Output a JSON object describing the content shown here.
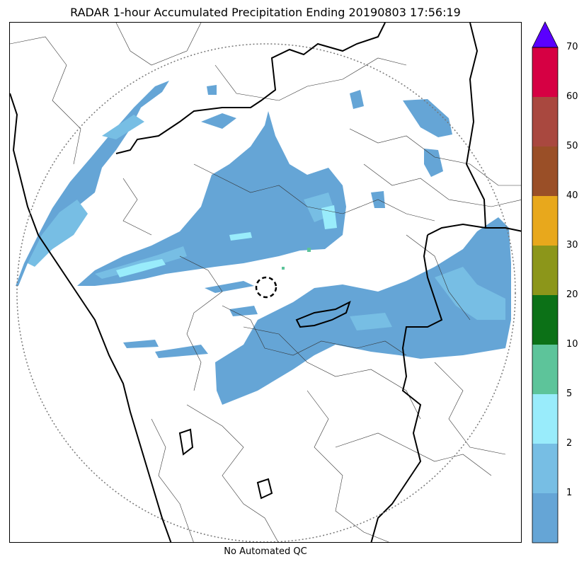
{
  "title": "RADAR 1-hour Accumulated Precipitation Ending 20190803 17:56:19",
  "footer": "No Automated QC",
  "colorbar": {
    "ticks": [
      "1",
      "2",
      "5",
      "10",
      "20",
      "30",
      "40",
      "50",
      "60",
      "70"
    ],
    "levels": [
      {
        "range": "0-1",
        "color": "#65a5d6"
      },
      {
        "range": "1-2",
        "color": "#77bee4"
      },
      {
        "range": "2-5",
        "color": "#99ecfb"
      },
      {
        "range": "5-10",
        "color": "#5dc49a"
      },
      {
        "range": "10-20",
        "color": "#0c7117"
      },
      {
        "range": "20-30",
        "color": "#8c961a"
      },
      {
        "range": "30-40",
        "color": "#e8a81c"
      },
      {
        "range": "40-50",
        "color": "#9a4f27"
      },
      {
        "range": "50-60",
        "color": "#a9483f"
      },
      {
        "range": "60-70",
        "color": "#d60043"
      }
    ],
    "extend_color": "#5a00ff"
  },
  "map": {
    "range_ring": "dotted",
    "center_marker": "dashed-circle",
    "coast_color": "#000000",
    "district_color": "#333333"
  }
}
